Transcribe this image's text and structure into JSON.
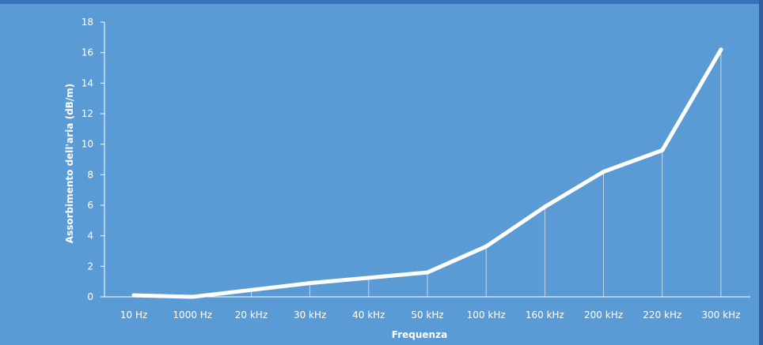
{
  "chart_data": {
    "type": "line",
    "title": "",
    "xlabel": "Frequenza",
    "ylabel": "Assorbimento dell'aria (dB/m)",
    "ylim": [
      0,
      18
    ],
    "yticks": [
      "0",
      "2",
      "4",
      "6",
      "8",
      "10",
      "12",
      "14",
      "16",
      "18"
    ],
    "categories": [
      "10 Hz",
      "1000 Hz",
      "20 kHz",
      "30 kHz",
      "40 kHz",
      "50 kHz",
      "100 kHz",
      "160 kHz",
      "200 kHz",
      "220 kHz",
      "300 kHz"
    ],
    "series": [
      {
        "values": [
          0.1,
          0.0,
          0.45,
          0.9,
          1.25,
          1.6,
          3.3,
          5.9,
          8.2,
          9.6,
          16.2
        ]
      }
    ],
    "grid": false,
    "drop_lines": true,
    "colors": {
      "background": "#5b9bd5",
      "line": "#ffffff",
      "axis": "#ffffff",
      "frame_top": "#3b73b9",
      "frame_right": "#2f5f9e"
    }
  }
}
